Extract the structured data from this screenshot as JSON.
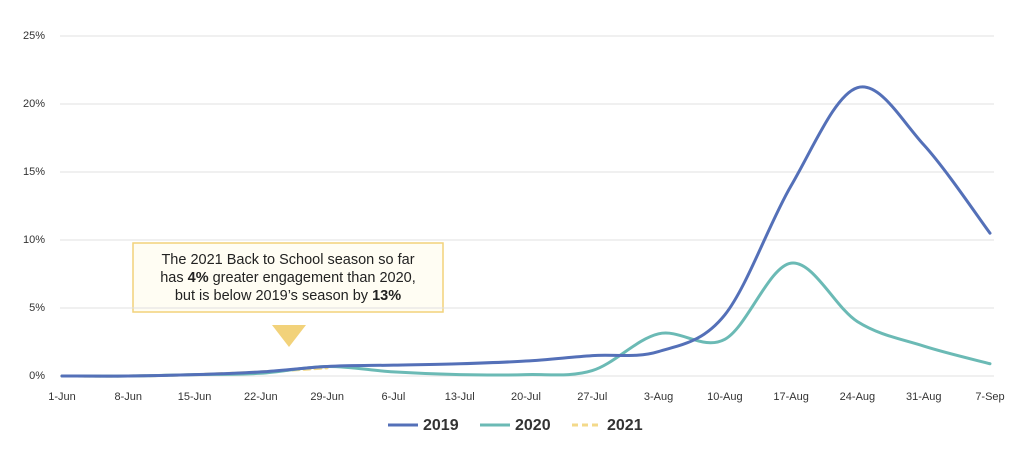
{
  "chart_data": {
    "type": "line",
    "categories": [
      "1-Jun",
      "8-Jun",
      "15-Jun",
      "22-Jun",
      "29-Jun",
      "6-Jul",
      "13-Jul",
      "20-Jul",
      "27-Jul",
      "3-Aug",
      "10-Aug",
      "17-Aug",
      "24-Aug",
      "31-Aug",
      "7-Sep"
    ],
    "series": [
      {
        "name": "2019",
        "color": "#5470b8",
        "style": "solid",
        "values": [
          0,
          0,
          0.1,
          0.3,
          0.7,
          0.8,
          0.9,
          1.1,
          1.5,
          1.8,
          4.5,
          14,
          21.2,
          17,
          10.5
        ]
      },
      {
        "name": "2020",
        "color": "#6bbab5",
        "style": "solid",
        "values": [
          0,
          0,
          0.1,
          0.2,
          0.7,
          0.3,
          0.1,
          0.1,
          0.4,
          3.1,
          2.7,
          8.3,
          4,
          2.2,
          0.9
        ]
      },
      {
        "name": "2021",
        "color": "#f3d98a",
        "style": "dashed",
        "values": [
          0,
          0,
          0.1,
          0.3,
          0.6,
          null,
          null,
          null,
          null,
          null,
          null,
          null,
          null,
          null,
          null
        ]
      }
    ],
    "ylim": [
      0,
      25
    ],
    "yticks": [
      {
        "value": 0,
        "label": "0%"
      },
      {
        "value": 5,
        "label": "5%"
      },
      {
        "value": 10,
        "label": "10%"
      },
      {
        "value": 15,
        "label": "15%"
      },
      {
        "value": 20,
        "label": "20%"
      },
      {
        "value": 25,
        "label": "25%"
      }
    ],
    "grid": true,
    "legend": "bottom",
    "annotation": [
      [
        {
          "text": "The 2021 Back to School season so far",
          "bold": false
        }
      ],
      [
        {
          "text": "has ",
          "bold": false
        },
        {
          "text": "4%",
          "bold": true
        },
        {
          "text": " greater engagement than 2020,",
          "bold": false
        }
      ],
      [
        {
          "text": "but is below 2019’s season by ",
          "bold": false
        },
        {
          "text": "13%",
          "bold": true
        }
      ]
    ]
  }
}
